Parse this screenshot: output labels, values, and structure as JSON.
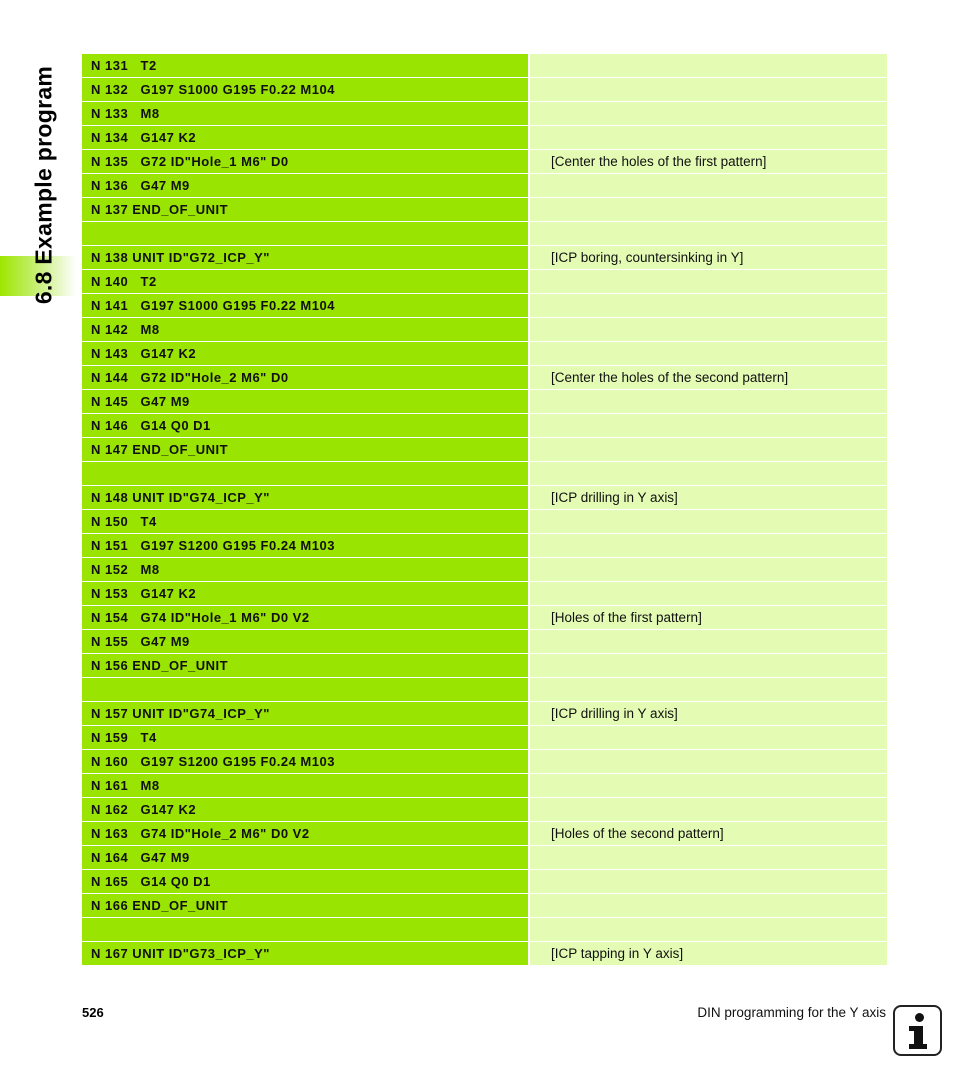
{
  "section_title": "6.8 Example program",
  "rows": [
    {
      "code": "N 131   T2",
      "comment": ""
    },
    {
      "code": "N 132   G197 S1000 G195 F0.22 M104",
      "comment": ""
    },
    {
      "code": "N 133   M8",
      "comment": ""
    },
    {
      "code": "N 134   G147 K2",
      "comment": ""
    },
    {
      "code": "N 135   G72 ID\"Hole_1 M6\" D0",
      "comment": "[Center the holes of the first pattern]"
    },
    {
      "code": "N 136   G47 M9",
      "comment": ""
    },
    {
      "code": "N 137 END_OF_UNIT",
      "comment": ""
    },
    {
      "code": "",
      "comment": ""
    },
    {
      "code": "N 138 UNIT ID\"G72_ICP_Y\"",
      "comment": "[ICP boring, countersinking in Y]"
    },
    {
      "code": "N 140   T2",
      "comment": ""
    },
    {
      "code": "N 141   G197 S1000 G195 F0.22 M104",
      "comment": ""
    },
    {
      "code": "N 142   M8",
      "comment": ""
    },
    {
      "code": "N 143   G147 K2",
      "comment": ""
    },
    {
      "code": "N 144   G72 ID\"Hole_2 M6\" D0",
      "comment": "[Center the holes of the second pattern]"
    },
    {
      "code": "N 145   G47 M9",
      "comment": ""
    },
    {
      "code": "N 146   G14 Q0 D1",
      "comment": ""
    },
    {
      "code": "N 147 END_OF_UNIT",
      "comment": ""
    },
    {
      "code": "",
      "comment": ""
    },
    {
      "code": "N 148 UNIT ID\"G74_ICP_Y\"",
      "comment": "[ICP drilling in Y axis]"
    },
    {
      "code": "N 150   T4",
      "comment": ""
    },
    {
      "code": "N 151   G197 S1200 G195 F0.24 M103",
      "comment": ""
    },
    {
      "code": "N 152   M8",
      "comment": ""
    },
    {
      "code": "N 153   G147 K2",
      "comment": ""
    },
    {
      "code": "N 154   G74 ID\"Hole_1 M6\" D0 V2",
      "comment": "[Holes of the first pattern]"
    },
    {
      "code": "N 155   G47 M9",
      "comment": ""
    },
    {
      "code": "N 156 END_OF_UNIT",
      "comment": ""
    },
    {
      "code": "",
      "comment": ""
    },
    {
      "code": "N 157 UNIT ID\"G74_ICP_Y\"",
      "comment": "[ICP drilling in Y axis]"
    },
    {
      "code": "N 159   T4",
      "comment": ""
    },
    {
      "code": "N 160   G197 S1200 G195 F0.24 M103",
      "comment": ""
    },
    {
      "code": "N 161   M8",
      "comment": ""
    },
    {
      "code": "N 162   G147 K2",
      "comment": ""
    },
    {
      "code": "N 163   G74 ID\"Hole_2 M6\" D0 V2",
      "comment": "[Holes of the second pattern]"
    },
    {
      "code": "N 164   G47 M9",
      "comment": ""
    },
    {
      "code": "N 165   G14 Q0 D1",
      "comment": ""
    },
    {
      "code": "N 166 END_OF_UNIT",
      "comment": ""
    },
    {
      "code": "",
      "comment": ""
    },
    {
      "code": "N 167 UNIT ID\"G73_ICP_Y\"",
      "comment": "[ICP tapping in Y axis]"
    }
  ],
  "footer": {
    "page_number": "526",
    "title": "DIN programming for the Y axis",
    "icon": "info-icon"
  },
  "colors": {
    "code_cell": "#99e400",
    "comment_cell": "#e4fbb4"
  }
}
